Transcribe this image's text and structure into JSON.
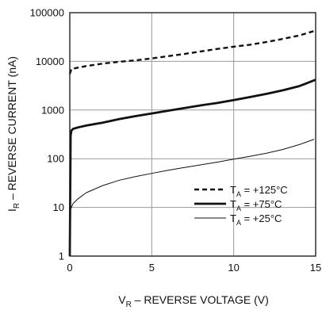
{
  "chart_data": {
    "type": "line",
    "x_scale": "linear",
    "y_scale": "log",
    "xlim": [
      0,
      15
    ],
    "ylim": [
      1,
      100000
    ],
    "x_ticks": [
      0,
      5,
      10,
      15
    ],
    "y_ticks": [
      1,
      10,
      100,
      1000,
      10000,
      100000
    ],
    "x_tick_labels": [
      "0",
      "5",
      "10",
      "15"
    ],
    "y_tick_labels": [
      "1",
      "10",
      "100",
      "1000",
      "10000",
      "100000"
    ],
    "xlabel": {
      "main": "V",
      "sub": "R",
      "rest": " – REVERSE VOLTAGE (V)"
    },
    "ylabel": {
      "main": "I",
      "sub": "R",
      "rest": " – REVERSE CURRENT (nA)"
    },
    "grid": true,
    "legend_position": "lower-right",
    "series": [
      {
        "name": "T_A = +125°C",
        "legend_main": "T",
        "legend_sub": "A",
        "legend_rest": " = +125°C",
        "style": "dashed",
        "x": [
          0,
          0.1,
          1,
          2,
          3,
          4,
          5,
          6,
          7,
          8,
          9,
          10,
          11,
          12,
          13,
          14,
          14.9
        ],
        "y": [
          5500,
          7000,
          8000,
          9000,
          9800,
          10500,
          11500,
          12800,
          14200,
          16000,
          18000,
          20000,
          22000,
          25000,
          29000,
          34000,
          42000
        ]
      },
      {
        "name": "T_A = +75°C",
        "legend_main": "T",
        "legend_sub": "A",
        "legend_rest": " = +75°C",
        "style": "thick",
        "x": [
          0,
          0.05,
          0.1,
          0.2,
          0.5,
          1,
          2,
          3,
          4,
          5,
          6,
          7,
          8,
          9,
          10,
          11,
          12,
          13,
          14,
          15
        ],
        "y": [
          1,
          300,
          380,
          410,
          440,
          480,
          550,
          650,
          750,
          850,
          970,
          1100,
          1250,
          1400,
          1600,
          1850,
          2150,
          2550,
          3100,
          4200
        ]
      },
      {
        "name": "T_A = +25°C",
        "legend_main": "T",
        "legend_sub": "A",
        "legend_rest": " = +25°C",
        "style": "thin",
        "x": [
          0,
          0.02,
          0.05,
          0.1,
          0.2,
          0.5,
          1,
          2,
          3,
          4,
          5,
          6,
          7,
          8,
          9,
          10,
          11,
          12,
          13,
          14,
          14.9
        ],
        "y": [
          1,
          7,
          9,
          10,
          12,
          15,
          20,
          28,
          36,
          43,
          50,
          58,
          66,
          75,
          85,
          98,
          112,
          130,
          155,
          195,
          250
        ]
      }
    ]
  }
}
